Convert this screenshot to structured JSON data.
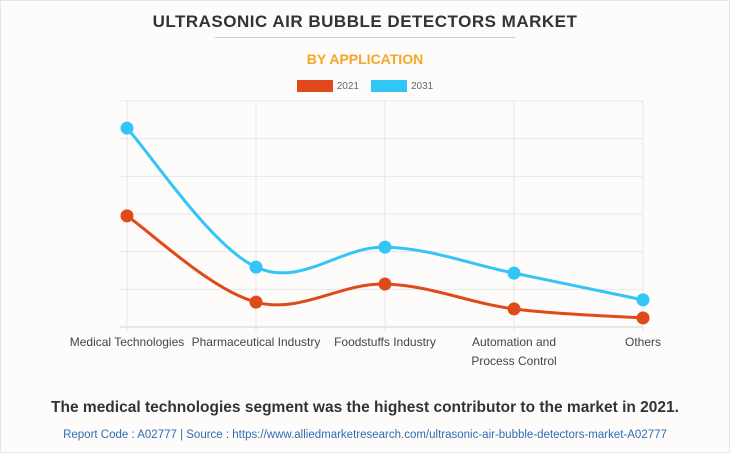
{
  "header": {
    "title": "ULTRASONIC AIR BUBBLE DETECTORS MARKET",
    "subtitle": "BY APPLICATION"
  },
  "chart_data": {
    "type": "line",
    "title": "ULTRASONIC AIR BUBBLE DETECTORS MARKET",
    "subtitle": "BY APPLICATION",
    "xlabel": "",
    "ylabel": "",
    "categories": [
      "Medical Technologies",
      "Pharmaceutical Industry",
      "Foodstuffs Industry",
      "Automation and Process Control",
      "Others"
    ],
    "category_lines": [
      [
        "Medical Technologies"
      ],
      [
        "Pharmaceutical Industry"
      ],
      [
        "Foodstuffs Industry"
      ],
      [
        "Automation and",
        "Process Control"
      ],
      [
        "Others"
      ]
    ],
    "series": [
      {
        "name": "2021",
        "color": "#e04a1a",
        "values": [
          2.95,
          0.66,
          1.14,
          0.48,
          0.24
        ]
      },
      {
        "name": "2031",
        "color": "#33c5f5",
        "values": [
          5.28,
          1.59,
          2.12,
          1.43,
          0.72
        ]
      }
    ],
    "ylim": [
      0,
      6
    ],
    "y_gridlines": 6,
    "y_tick_labels": "none",
    "grid": true,
    "smooth": true,
    "legend": "top-center",
    "units_note": "relative units (no y-axis labels shown)"
  },
  "caption": "The medical technologies segment was the highest contributor to the market in 2021.",
  "source": "Report Code : A02777  |  Source : https://www.alliedmarketresearch.com/ultrasonic-air-bubble-detectors-market-A02777"
}
